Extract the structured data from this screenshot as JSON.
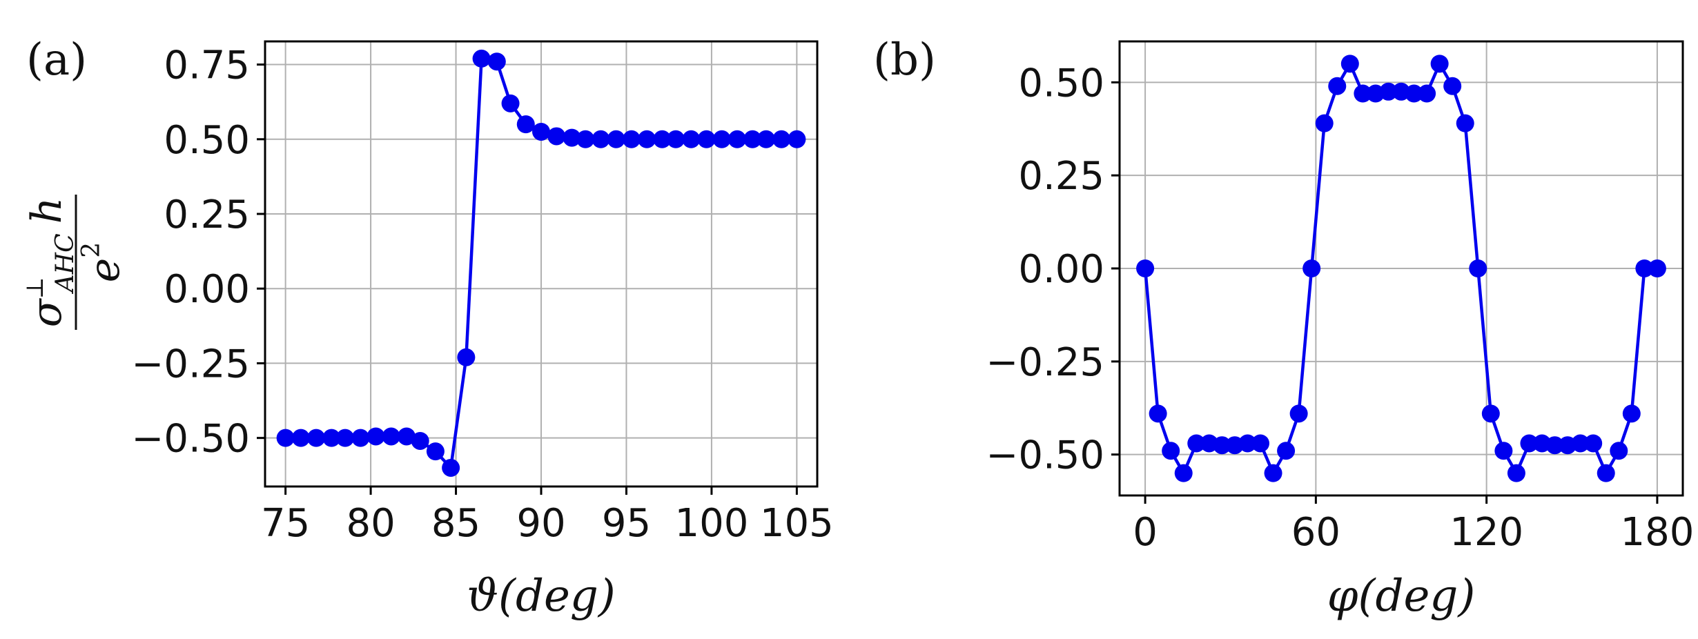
{
  "figure": {
    "ylabel_frac": {
      "numerator_sym": "σ",
      "numerator_sup": "⊥",
      "numerator_sub": "AHC",
      "numerator_tail": "h",
      "denominator_base": "e",
      "denominator_sup": "2"
    }
  },
  "chart_data": [
    {
      "type": "line",
      "panel_label": "(a)",
      "xlabel": "ϑ(deg)",
      "xlim": [
        73.8,
        106.2
      ],
      "ylim": [
        -0.6625,
        0.8275
      ],
      "xticks": [
        75,
        80,
        85,
        90,
        95,
        100,
        105
      ],
      "xtick_labels": [
        "75",
        "80",
        "85",
        "90",
        "95",
        "100",
        "105"
      ],
      "yticks": [
        -0.5,
        -0.25,
        0.0,
        0.25,
        0.5,
        0.75
      ],
      "ytick_labels": [
        "−0.50",
        "−0.25",
        "0.00",
        "0.25",
        "0.50",
        "0.75"
      ],
      "grid": true,
      "color": "#0000ee",
      "series": [
        {
          "x": [
            75,
            75.9,
            76.8,
            77.7,
            78.5,
            79.4,
            80.3,
            81.2,
            82.1,
            82.9,
            83.8,
            84.7,
            85.6,
            86.5,
            87.4,
            88.2,
            89.1,
            90.0,
            90.9,
            91.8,
            92.6,
            93.5,
            94.4,
            95.3,
            96.2,
            97.1,
            97.9,
            98.8,
            99.7,
            100.6,
            101.5,
            102.4,
            103.2,
            104.1,
            105.0
          ],
          "y": [
            -0.5,
            -0.5,
            -0.5,
            -0.5,
            -0.5,
            -0.5,
            -0.495,
            -0.495,
            -0.495,
            -0.51,
            -0.545,
            -0.6,
            -0.23,
            0.77,
            0.76,
            0.62,
            0.55,
            0.525,
            0.51,
            0.505,
            0.5,
            0.5,
            0.5,
            0.5,
            0.5,
            0.5,
            0.5,
            0.5,
            0.5,
            0.5,
            0.5,
            0.5,
            0.5,
            0.5,
            0.5
          ]
        }
      ]
    },
    {
      "type": "line",
      "panel_label": "(b)",
      "xlabel": "φ(deg)",
      "xlim": [
        -9,
        189
      ],
      "ylim": [
        -0.61,
        0.61
      ],
      "xticks": [
        0,
        60,
        120,
        180
      ],
      "xtick_labels": [
        "0",
        "60",
        "120",
        "180"
      ],
      "yticks": [
        -0.5,
        -0.25,
        0.0,
        0.25,
        0.5
      ],
      "ytick_labels": [
        "−0.50",
        "−0.25",
        "0.00",
        "0.25",
        "0.50"
      ],
      "grid": true,
      "color": "#0000ee",
      "series": [
        {
          "x": [
            0,
            4.5,
            9,
            13.5,
            18,
            22.5,
            27,
            31.5,
            36,
            40.5,
            45,
            49.5,
            54,
            58.5,
            63,
            67.5,
            72,
            76.5,
            81,
            85.5,
            90,
            94.5,
            99,
            103.5,
            108,
            112.5,
            117,
            121.5,
            126,
            130.5,
            135,
            139.5,
            144,
            148.5,
            153,
            157.5,
            162,
            166.5,
            171,
            175.5,
            180
          ],
          "y": [
            0.0,
            -0.39,
            -0.49,
            -0.55,
            -0.47,
            -0.47,
            -0.475,
            -0.475,
            -0.47,
            -0.47,
            -0.55,
            -0.49,
            -0.39,
            0.0,
            0.39,
            0.49,
            0.55,
            0.47,
            0.47,
            0.475,
            0.475,
            0.47,
            0.47,
            0.55,
            0.49,
            0.39,
            0.0,
            -0.39,
            -0.49,
            -0.55,
            -0.47,
            -0.47,
            -0.475,
            -0.475,
            -0.47,
            -0.47,
            -0.55,
            -0.49,
            -0.39,
            0.0,
            0.0
          ]
        }
      ]
    }
  ]
}
